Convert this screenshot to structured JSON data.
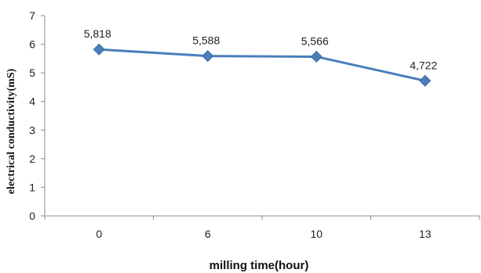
{
  "chart_data": {
    "type": "line",
    "categories": [
      "0",
      "6",
      "10",
      "13"
    ],
    "values": [
      5.818,
      5.588,
      5.566,
      4.722
    ],
    "data_labels": [
      "5,818",
      "5,588",
      "5,566",
      "4,722"
    ],
    "xlabel": "milling time(hour)",
    "ylabel": "electrical conductivity(mS)",
    "ylim": [
      0,
      7
    ],
    "yticks": [
      0,
      1,
      2,
      3,
      4,
      5,
      6,
      7
    ],
    "grid": false,
    "legend": "none",
    "colors": {
      "line": "#4a7ebb",
      "marker": "#4a7ebb",
      "axis": "#8c8c8c"
    }
  }
}
